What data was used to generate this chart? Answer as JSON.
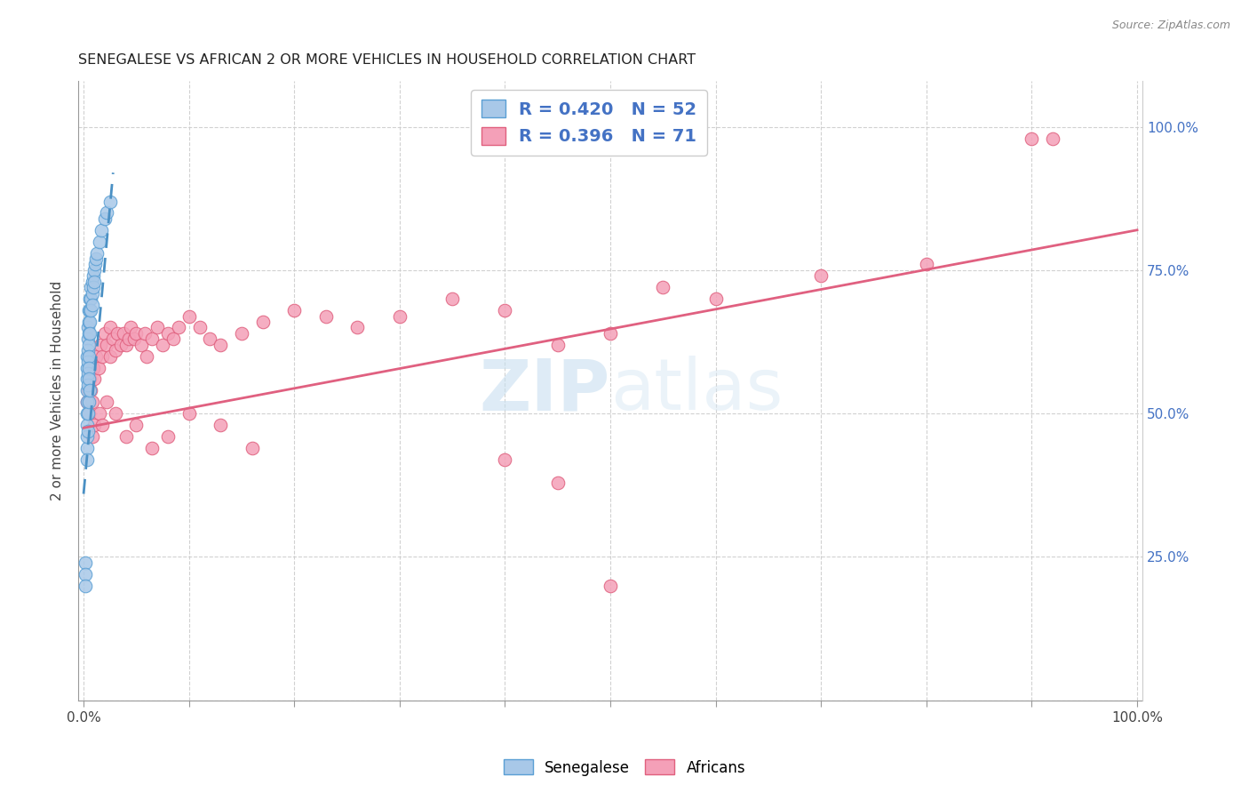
{
  "title": "SENEGALESE VS AFRICAN 2 OR MORE VEHICLES IN HOUSEHOLD CORRELATION CHART",
  "source": "Source: ZipAtlas.com",
  "ylabel": "2 or more Vehicles in Household",
  "ytick_labels": [
    "",
    "25.0%",
    "50.0%",
    "75.0%",
    "100.0%"
  ],
  "ytick_positions": [
    0.0,
    0.25,
    0.5,
    0.75,
    1.0
  ],
  "xtick_labels": [
    "0.0%",
    "",
    "",
    "",
    "",
    "",
    "",
    "",
    "",
    "",
    "100.0%"
  ],
  "xtick_positions": [
    0.0,
    0.1,
    0.2,
    0.3,
    0.4,
    0.5,
    0.6,
    0.7,
    0.8,
    0.9,
    1.0
  ],
  "color_blue_fill": "#a8c8e8",
  "color_blue_edge": "#5a9fd4",
  "color_pink_fill": "#f4a0b8",
  "color_pink_edge": "#e0607e",
  "color_blue_line": "#4a90c4",
  "color_pink_line": "#e06080",
  "watermark_color": "#dce8f4",
  "sen_x": [
    0.002,
    0.002,
    0.003,
    0.003,
    0.003,
    0.003,
    0.003,
    0.003,
    0.004,
    0.004,
    0.004,
    0.004,
    0.004,
    0.004,
    0.005,
    0.005,
    0.005,
    0.005,
    0.005,
    0.005,
    0.005,
    0.006,
    0.006,
    0.006,
    0.006,
    0.007,
    0.007,
    0.007,
    0.008,
    0.008,
    0.008,
    0.009,
    0.009,
    0.01,
    0.01,
    0.011,
    0.012,
    0.013,
    0.015,
    0.017,
    0.02,
    0.022,
    0.025,
    0.003,
    0.004,
    0.005,
    0.006,
    0.003,
    0.003,
    0.004,
    0.002,
    0.003
  ],
  "sen_y": [
    0.24,
    0.22,
    0.6,
    0.58,
    0.56,
    0.54,
    0.52,
    0.5,
    0.65,
    0.63,
    0.61,
    0.59,
    0.57,
    0.55,
    0.68,
    0.66,
    0.64,
    0.62,
    0.6,
    0.58,
    0.56,
    0.7,
    0.68,
    0.66,
    0.64,
    0.72,
    0.7,
    0.68,
    0.73,
    0.71,
    0.69,
    0.74,
    0.72,
    0.75,
    0.73,
    0.76,
    0.77,
    0.78,
    0.8,
    0.82,
    0.84,
    0.85,
    0.87,
    0.48,
    0.5,
    0.52,
    0.54,
    0.44,
    0.46,
    0.47,
    0.2,
    0.42
  ],
  "afr_x": [
    0.003,
    0.004,
    0.005,
    0.006,
    0.007,
    0.008,
    0.009,
    0.01,
    0.012,
    0.014,
    0.016,
    0.018,
    0.02,
    0.022,
    0.025,
    0.025,
    0.028,
    0.03,
    0.032,
    0.035,
    0.038,
    0.04,
    0.043,
    0.045,
    0.048,
    0.05,
    0.055,
    0.058,
    0.06,
    0.065,
    0.07,
    0.075,
    0.08,
    0.085,
    0.09,
    0.1,
    0.11,
    0.12,
    0.13,
    0.15,
    0.17,
    0.2,
    0.23,
    0.26,
    0.3,
    0.35,
    0.4,
    0.45,
    0.5,
    0.55,
    0.6,
    0.7,
    0.8,
    0.9,
    0.008,
    0.01,
    0.015,
    0.018,
    0.022,
    0.03,
    0.04,
    0.05,
    0.065,
    0.08,
    0.1,
    0.13,
    0.16,
    0.45,
    0.5,
    0.4,
    0.92
  ],
  "afr_y": [
    0.52,
    0.54,
    0.5,
    0.56,
    0.54,
    0.52,
    0.58,
    0.56,
    0.6,
    0.58,
    0.62,
    0.6,
    0.64,
    0.62,
    0.65,
    0.6,
    0.63,
    0.61,
    0.64,
    0.62,
    0.64,
    0.62,
    0.63,
    0.65,
    0.63,
    0.64,
    0.62,
    0.64,
    0.6,
    0.63,
    0.65,
    0.62,
    0.64,
    0.63,
    0.65,
    0.67,
    0.65,
    0.63,
    0.62,
    0.64,
    0.66,
    0.68,
    0.67,
    0.65,
    0.67,
    0.7,
    0.68,
    0.62,
    0.64,
    0.72,
    0.7,
    0.74,
    0.76,
    0.98,
    0.46,
    0.48,
    0.5,
    0.48,
    0.52,
    0.5,
    0.46,
    0.48,
    0.44,
    0.46,
    0.5,
    0.48,
    0.44,
    0.38,
    0.2,
    0.42,
    0.98
  ],
  "afr_line_x": [
    0.0,
    1.0
  ],
  "afr_line_y": [
    0.475,
    0.82
  ],
  "sen_line_x": [
    0.0,
    0.028
  ],
  "sen_line_y": [
    0.36,
    0.92
  ]
}
